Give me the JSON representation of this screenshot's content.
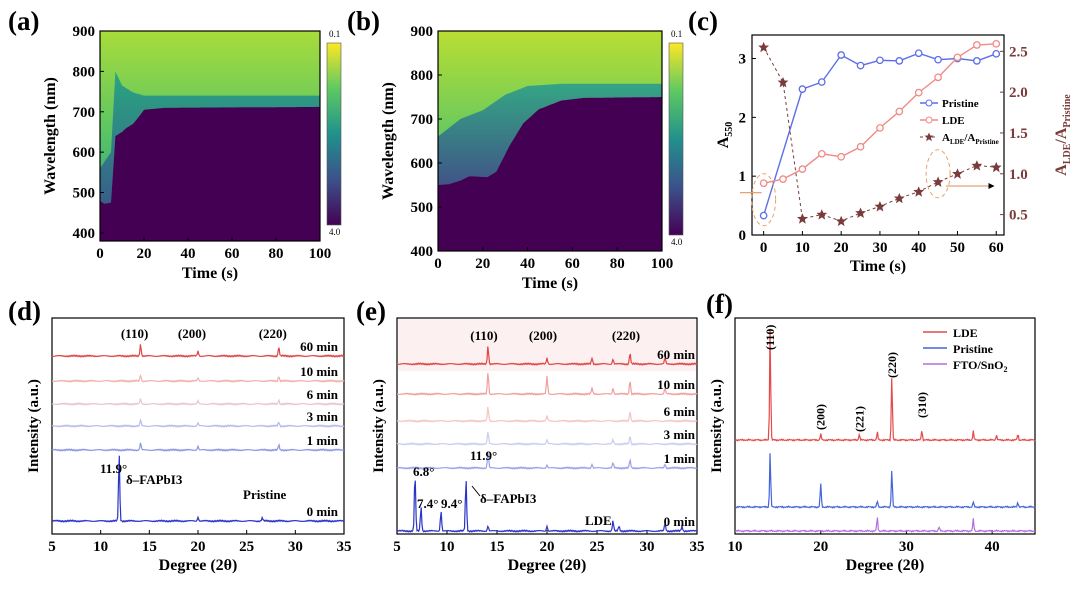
{
  "chart_data": [
    {
      "id": "a",
      "panel_label": "(a)",
      "type": "heatmap",
      "xlabel": "Time (s)",
      "ylabel": "Wavelength (nm)",
      "xlim": [
        0,
        100
      ],
      "ylim": [
        380,
        900
      ],
      "xticks": [
        "0",
        "20",
        "40",
        "60",
        "80",
        "100"
      ],
      "yticks": [
        "400",
        "500",
        "600",
        "700",
        "800",
        "900"
      ],
      "colorbar": {
        "top": "0.1",
        "bottom": "4.0"
      },
      "absorption_edge": [
        [
          0,
          480
        ],
        [
          2,
          472
        ],
        [
          5,
          475
        ],
        [
          7,
          640
        ],
        [
          10,
          650
        ],
        [
          12,
          660
        ],
        [
          15,
          670
        ],
        [
          18,
          690
        ],
        [
          20,
          705
        ],
        [
          30,
          710
        ],
        [
          100,
          712
        ]
      ],
      "transition_top": [
        [
          0,
          560
        ],
        [
          5,
          600
        ],
        [
          7,
          800
        ],
        [
          10,
          765
        ],
        [
          15,
          748
        ],
        [
          20,
          740
        ],
        [
          100,
          740
        ]
      ]
    },
    {
      "id": "b",
      "panel_label": "(b)",
      "type": "heatmap",
      "xlabel": "Time (s)",
      "ylabel": "Wavelength (nm)",
      "xlim": [
        0,
        100
      ],
      "ylim": [
        400,
        900
      ],
      "xticks": [
        "0",
        "20",
        "40",
        "60",
        "80",
        "100"
      ],
      "yticks": [
        "400",
        "500",
        "600",
        "700",
        "800",
        "900"
      ],
      "colorbar": {
        "top": "0.1",
        "bottom": "4.0"
      },
      "absorption_edge": [
        [
          0,
          550
        ],
        [
          5,
          552
        ],
        [
          10,
          560
        ],
        [
          14,
          570
        ],
        [
          22,
          568
        ],
        [
          26,
          580
        ],
        [
          32,
          640
        ],
        [
          38,
          690
        ],
        [
          45,
          722
        ],
        [
          55,
          742
        ],
        [
          65,
          748
        ],
        [
          100,
          750
        ]
      ],
      "transition_top": [
        [
          0,
          660
        ],
        [
          10,
          700
        ],
        [
          20,
          720
        ],
        [
          30,
          755
        ],
        [
          40,
          775
        ],
        [
          55,
          780
        ],
        [
          100,
          780
        ]
      ]
    },
    {
      "id": "c",
      "panel_label": "(c)",
      "type": "line",
      "xlabel": "Time (s)",
      "ylabel_left": "A550",
      "ylabel_right": "ALDE/APristine",
      "xlim": [
        -3,
        62
      ],
      "ylim_left": [
        0,
        3.4
      ],
      "ylim_right": [
        0.25,
        2.7
      ],
      "xticks": [
        "0",
        "10",
        "20",
        "30",
        "40",
        "50",
        "60"
      ],
      "yticks_left": [
        "0",
        "1",
        "2",
        "3"
      ],
      "yticks_right": [
        "0.5",
        "1.0",
        "1.5",
        "2.0",
        "2.5"
      ],
      "series": [
        {
          "name": "Pristine",
          "axis": "left",
          "color": "#5b6ee8",
          "marker": "circle",
          "x": [
            0,
            10,
            15,
            20,
            25,
            30,
            35,
            40,
            45,
            50,
            55,
            60
          ],
          "values": [
            0.33,
            2.48,
            2.6,
            3.06,
            2.88,
            2.97,
            2.96,
            3.09,
            2.98,
            3.0,
            2.96,
            3.08
          ]
        },
        {
          "name": "LDE",
          "axis": "left",
          "color": "#f08a86",
          "marker": "circle",
          "x": [
            0,
            5,
            10,
            15,
            20,
            25,
            30,
            35,
            40,
            45,
            50,
            55,
            60
          ],
          "values": [
            0.88,
            0.95,
            1.12,
            1.38,
            1.33,
            1.5,
            1.82,
            2.1,
            2.42,
            2.68,
            3.02,
            3.23,
            3.25
          ]
        },
        {
          "name": "ALDE/APristine",
          "axis": "right",
          "color": "#7a3b3b",
          "marker": "star",
          "x": [
            0,
            5,
            10,
            15,
            20,
            25,
            30,
            35,
            40,
            45,
            50,
            55,
            60
          ],
          "values": [
            2.55,
            2.12,
            0.45,
            0.5,
            0.42,
            0.52,
            0.6,
            0.7,
            0.78,
            0.9,
            1.0,
            1.1,
            1.08
          ]
        }
      ],
      "legend": [
        "Pristine",
        "LDE",
        "ALDE/APristine"
      ]
    },
    {
      "id": "d",
      "panel_label": "(d)",
      "type": "line",
      "xlabel": "Degree (2θ)",
      "ylabel": "Intensity (a.u.)",
      "xlim": [
        5,
        35
      ],
      "xticks": [
        "5",
        "10",
        "15",
        "20",
        "25",
        "30",
        "35"
      ],
      "peak_labels": [
        "(110)",
        "(200)",
        "(220)"
      ],
      "series": [
        {
          "name": "60 min",
          "color": "#e04545",
          "peaks": [
            [
              14.1,
              12
            ],
            [
              20.0,
              5
            ],
            [
              28.3,
              9
            ]
          ]
        },
        {
          "name": "10 min",
          "color": "#f2b0ad",
          "peaks": [
            [
              14.1,
              6
            ],
            [
              20.0,
              3
            ],
            [
              28.3,
              5
            ]
          ]
        },
        {
          "name": "6 min",
          "color": "#e9c4cf",
          "peaks": [
            [
              14.1,
              5
            ],
            [
              20.0,
              3
            ],
            [
              28.3,
              4
            ]
          ]
        },
        {
          "name": "3 min",
          "color": "#b7bcec",
          "peaks": [
            [
              14.1,
              6
            ],
            [
              20.0,
              3
            ],
            [
              28.3,
              4
            ]
          ]
        },
        {
          "name": "1 min",
          "color": "#8d96e6",
          "peaks": [
            [
              14.1,
              7
            ],
            [
              20.0,
              4
            ],
            [
              28.3,
              5
            ]
          ]
        },
        {
          "name": "0 min",
          "color": "#2a33c8",
          "peaks": [
            [
              11.9,
              68
            ],
            [
              20.0,
              4
            ],
            [
              26.6,
              3
            ]
          ]
        }
      ],
      "annotations": {
        "angle": "11.9°",
        "phase": "δ–FAPbI3",
        "sample": "Pristine"
      }
    },
    {
      "id": "e",
      "panel_label": "(e)",
      "type": "line",
      "xlabel": "Degree (2θ)",
      "ylabel": "Intensity (a.u.)",
      "xlim": [
        5,
        35
      ],
      "xticks": [
        "5",
        "10",
        "15",
        "20",
        "25",
        "30",
        "35"
      ],
      "peak_labels": [
        "(110)",
        "(200)",
        "(220)"
      ],
      "series": [
        {
          "name": "60 min",
          "color": "#e04545",
          "peaks": [
            [
              14.1,
              18
            ],
            [
              20.0,
              6
            ],
            [
              24.5,
              6
            ],
            [
              26.6,
              5
            ],
            [
              28.3,
              11
            ],
            [
              31.8,
              6
            ]
          ]
        },
        {
          "name": "10 min",
          "color": "#f0a09c",
          "peaks": [
            [
              14.1,
              22
            ],
            [
              20.0,
              18
            ],
            [
              24.5,
              6
            ],
            [
              26.6,
              6
            ],
            [
              28.3,
              14
            ],
            [
              31.8,
              6
            ]
          ]
        },
        {
          "name": "6 min",
          "color": "#f3c6c3",
          "peaks": [
            [
              14.1,
              14
            ],
            [
              20.0,
              5
            ],
            [
              28.3,
              10
            ]
          ]
        },
        {
          "name": "3 min",
          "color": "#c9cdef",
          "peaks": [
            [
              14.1,
              12
            ],
            [
              20.0,
              4
            ],
            [
              26.6,
              4
            ],
            [
              28.3,
              8
            ]
          ]
        },
        {
          "name": "1 min",
          "color": "#9aa2ea",
          "peaks": [
            [
              14.1,
              16
            ],
            [
              20.0,
              3
            ],
            [
              24.5,
              4
            ],
            [
              26.6,
              5
            ],
            [
              28.3,
              8
            ],
            [
              31.8,
              4
            ]
          ]
        },
        {
          "name": "0 min",
          "color": "#2a33c8",
          "peaks": [
            [
              6.8,
              58
            ],
            [
              7.4,
              24
            ],
            [
              9.4,
              20
            ],
            [
              11.9,
              52
            ],
            [
              14.1,
              5
            ],
            [
              20.0,
              5
            ],
            [
              26.6,
              10
            ],
            [
              27.2,
              5
            ],
            [
              31.8,
              8
            ],
            [
              33.5,
              5
            ]
          ]
        }
      ],
      "annotations": {
        "angles": [
          "6.8°",
          "7.4°",
          "9.4°",
          "11.9°"
        ],
        "phase": "δ–FAPbI3",
        "sample": "LDE"
      }
    },
    {
      "id": "f",
      "panel_label": "(f)",
      "type": "line",
      "xlabel": "Degree (2θ)",
      "ylabel": "Intensity (a.u.)",
      "xlim": [
        10,
        45
      ],
      "xticks": [
        "10",
        "20",
        "30",
        "40"
      ],
      "peak_labels": [
        "(110)",
        "(200)",
        "(221)",
        "(220)",
        "(310)"
      ],
      "series": [
        {
          "name": "LDE",
          "color": "#e44a4a",
          "peaks": [
            [
              14.1,
              115
            ],
            [
              20.0,
              6
            ],
            [
              24.5,
              6
            ],
            [
              26.6,
              8
            ],
            [
              28.3,
              66
            ],
            [
              31.8,
              10
            ],
            [
              37.8,
              9
            ],
            [
              40.5,
              5
            ],
            [
              43.0,
              6
            ]
          ]
        },
        {
          "name": "Pristine",
          "color": "#4466d8",
          "peaks": [
            [
              14.1,
              56
            ],
            [
              20.0,
              24
            ],
            [
              26.6,
              6
            ],
            [
              28.3,
              38
            ],
            [
              37.8,
              5
            ],
            [
              43.0,
              5
            ]
          ]
        },
        {
          "name": "FTO/SnO2",
          "color": "#b36fe0",
          "peaks": [
            [
              26.6,
              14
            ],
            [
              33.8,
              4
            ],
            [
              37.8,
              12
            ]
          ]
        }
      ],
      "legend": [
        "LDE",
        "Pristine",
        "FTO/SnO2"
      ]
    }
  ]
}
